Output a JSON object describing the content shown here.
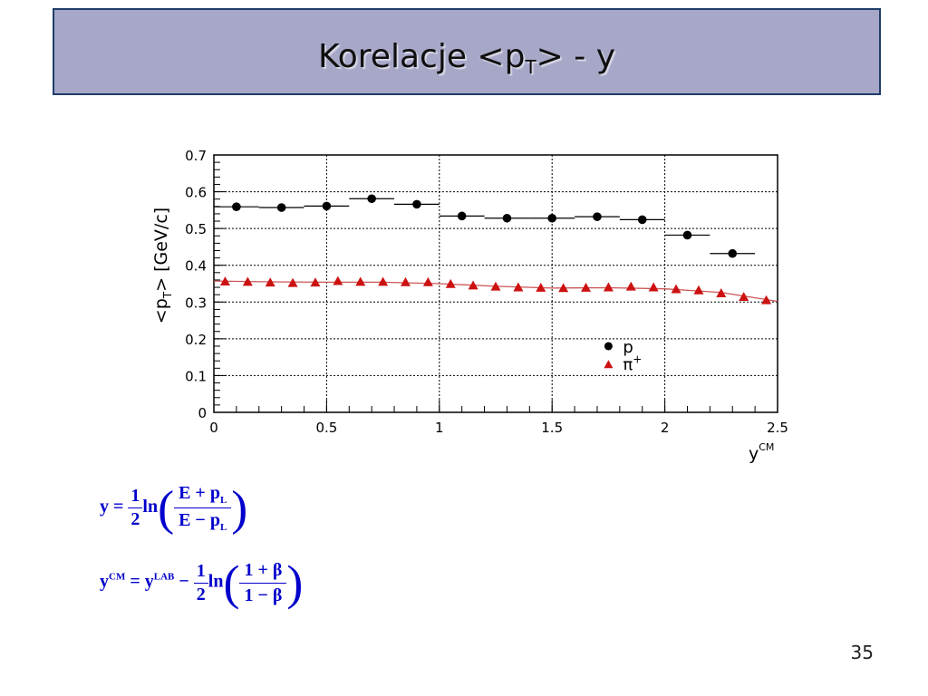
{
  "slide": {
    "title": "Korelacje  <p",
    "title_sub": "T",
    "title_tail": "> - y",
    "number": "35"
  },
  "formulas": {
    "f1_lhs": "y =",
    "f1_num": "1",
    "f1_den": "2",
    "f1_ln": "ln",
    "f1_inner_num": "E + p",
    "f1_inner_num_sub": "L",
    "f1_inner_den": "E − p",
    "f1_inner_den_sub": "L",
    "f2_y": "y",
    "f2_cm": "CM",
    "f2_eq": "= y",
    "f2_lab": "LAB",
    "f2_minus": "−",
    "f2_num": "1",
    "f2_den": "2",
    "f2_ln": "ln",
    "f2_inner_num": "1 + β",
    "f2_inner_den": "1 − β"
  },
  "chart_data": {
    "type": "scatter",
    "xlabel": "y",
    "xlabel_sup": "CM",
    "ylabel": "<p",
    "ylabel_sub": "T",
    "ylabel_tail": "> [GeV/c]",
    "xlim": [
      0,
      2.5
    ],
    "ylim": [
      0,
      0.7
    ],
    "x_ticks": [
      0,
      0.5,
      1,
      1.5,
      2,
      2.5
    ],
    "x_tick_labels": [
      "0",
      "0.5",
      "1",
      "1.5",
      "2",
      "2.5"
    ],
    "y_ticks": [
      0,
      0.1,
      0.2,
      0.3,
      0.4,
      0.5,
      0.6,
      0.7
    ],
    "y_tick_labels": [
      "0",
      "0.1",
      "0.2",
      "0.3",
      "0.4",
      "0.5",
      "0.6",
      "0.7"
    ],
    "grid": true,
    "legend_position": "bottom-right",
    "series": [
      {
        "name": "p",
        "marker": "circle",
        "color": "#000000",
        "x": [
          0.1,
          0.3,
          0.5,
          0.7,
          0.9,
          1.1,
          1.3,
          1.5,
          1.7,
          1.9,
          2.1,
          2.3
        ],
        "x_err": 0.1,
        "y": [
          0.559,
          0.557,
          0.561,
          0.581,
          0.566,
          0.534,
          0.528,
          0.528,
          0.532,
          0.524,
          0.482,
          0.432
        ]
      },
      {
        "name": "π",
        "name_sup": "+",
        "marker": "triangle",
        "color": "#cc1111",
        "x": [
          0.05,
          0.15,
          0.25,
          0.35,
          0.45,
          0.55,
          0.65,
          0.75,
          0.85,
          0.95,
          1.05,
          1.15,
          1.25,
          1.35,
          1.45,
          1.55,
          1.65,
          1.75,
          1.85,
          1.95,
          2.05,
          2.15,
          2.25,
          2.35,
          2.45
        ],
        "y": [
          0.356,
          0.355,
          0.353,
          0.352,
          0.353,
          0.357,
          0.355,
          0.355,
          0.354,
          0.354,
          0.349,
          0.345,
          0.342,
          0.34,
          0.339,
          0.338,
          0.339,
          0.34,
          0.342,
          0.34,
          0.335,
          0.332,
          0.324,
          0.314,
          0.305
        ],
        "fit_line": {
          "color": "#cc5555",
          "x": [
            0.0,
            0.25,
            0.5,
            0.75,
            1.0,
            1.25,
            1.5,
            1.75,
            2.0,
            2.25,
            2.5
          ],
          "y": [
            0.357,
            0.355,
            0.354,
            0.354,
            0.35,
            0.343,
            0.338,
            0.339,
            0.336,
            0.326,
            0.302
          ]
        }
      }
    ]
  }
}
